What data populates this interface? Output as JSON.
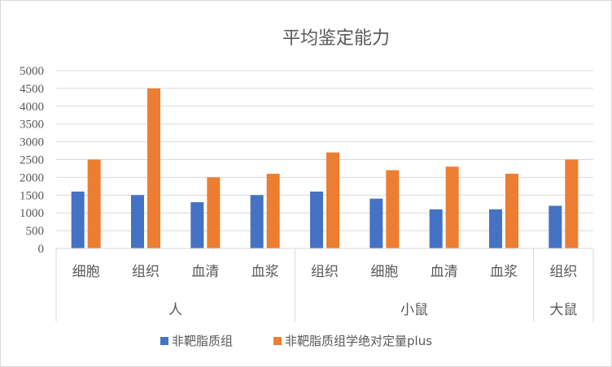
{
  "chart_data": {
    "type": "bar",
    "title": "平均鉴定能力",
    "groups": [
      {
        "label": "人",
        "categories": [
          "细胞",
          "组织",
          "血清",
          "血浆"
        ]
      },
      {
        "label": "小鼠",
        "categories": [
          "组织",
          "细胞",
          "血清",
          "血浆"
        ]
      },
      {
        "label": "大鼠",
        "categories": [
          "组织"
        ]
      }
    ],
    "categories": [
      "细胞",
      "组织",
      "血清",
      "血浆",
      "组织",
      "细胞",
      "血清",
      "血浆",
      "组织"
    ],
    "series": [
      {
        "name": "非靶脂质组",
        "color": "#4472c4",
        "values": [
          1600,
          1500,
          1300,
          1500,
          1600,
          1400,
          1100,
          1100,
          1200
        ]
      },
      {
        "name": "非靶脂质组学绝对定量plus",
        "color": "#ed7d31",
        "values": [
          2500,
          4500,
          2000,
          2100,
          2700,
          2200,
          2300,
          2100,
          2500
        ]
      }
    ],
    "ylim": [
      0,
      5000
    ],
    "yticks": [
      "0",
      "500",
      "1000",
      "1500",
      "2000",
      "2500",
      "3000",
      "3500",
      "4000",
      "4500",
      "5000"
    ],
    "grid": true,
    "legend": "bottom"
  }
}
